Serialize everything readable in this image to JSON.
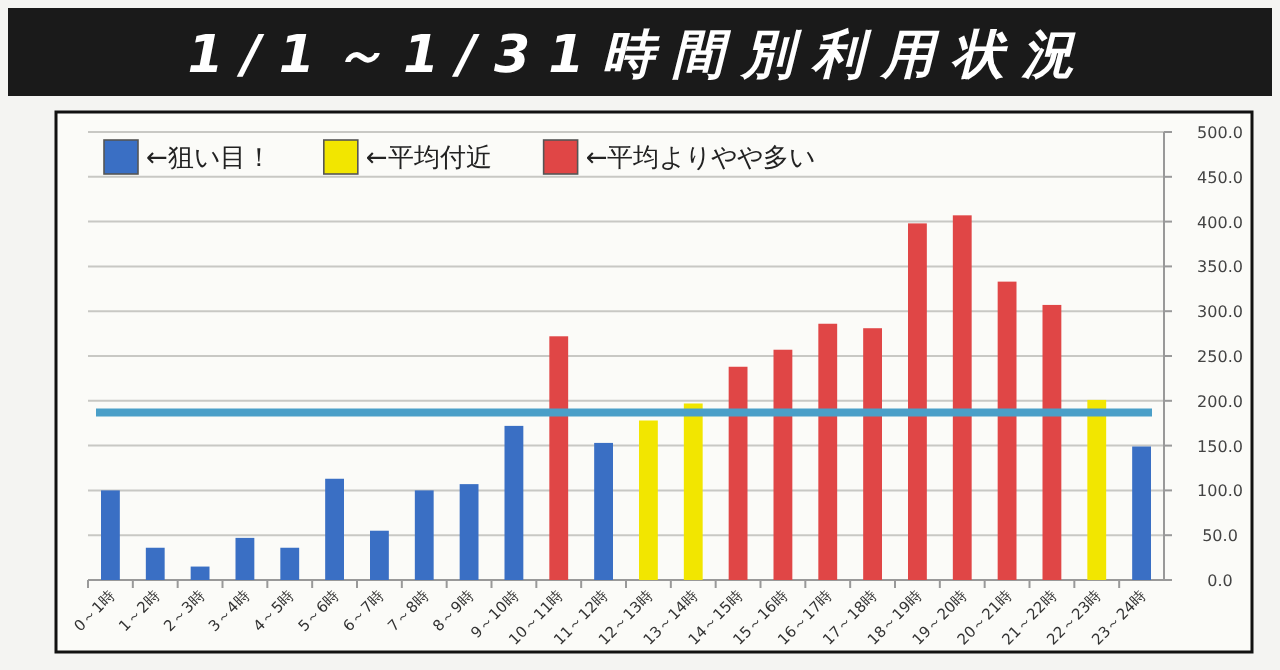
{
  "chart_data": {
    "type": "bar",
    "title": "1/1～1/31時間別利用状況",
    "categories": [
      "0～1時",
      "1～2時",
      "2～3時",
      "3～4時",
      "4～5時",
      "5～6時",
      "6～7時",
      "7～8時",
      "8～9時",
      "9～10時",
      "10～11時",
      "11～12時",
      "12～13時",
      "13～14時",
      "14～15時",
      "15～16時",
      "16～17時",
      "17～18時",
      "18～19時",
      "19～20時",
      "20～21時",
      "21～22時",
      "22～23時",
      "23～24時"
    ],
    "series": [
      {
        "name": "←狙い目！",
        "color": "#3a6fc4",
        "values": [
          100,
          36,
          15,
          47,
          36,
          113,
          55,
          100,
          107,
          172,
          null,
          153,
          null,
          null,
          null,
          null,
          null,
          null,
          null,
          null,
          null,
          null,
          null,
          149
        ]
      },
      {
        "name": "←平均付近",
        "color": "#f2e600",
        "values": [
          null,
          null,
          null,
          null,
          null,
          null,
          null,
          null,
          null,
          null,
          null,
          null,
          178,
          197,
          null,
          null,
          null,
          null,
          null,
          null,
          null,
          null,
          201,
          null
        ]
      },
      {
        "name": "←平均よりやや多い",
        "color": "#e04646",
        "values": [
          null,
          null,
          null,
          null,
          null,
          null,
          null,
          null,
          null,
          null,
          272,
          null,
          null,
          null,
          238,
          257,
          286,
          281,
          398,
          407,
          333,
          307,
          null,
          null
        ]
      }
    ],
    "ylim": [
      0,
      500
    ],
    "yticks": [
      {
        "value": 0,
        "label": "0.0"
      },
      {
        "value": 50,
        "label": "50.0"
      },
      {
        "value": 100,
        "label": "100.0"
      },
      {
        "value": 150,
        "label": "150.0"
      },
      {
        "value": 200,
        "label": "200.0"
      },
      {
        "value": 250,
        "label": "250.0"
      },
      {
        "value": 300,
        "label": "300.0"
      },
      {
        "value": 350,
        "label": "350.0"
      },
      {
        "value": 400,
        "label": "400.0"
      },
      {
        "value": 450,
        "label": "450.0"
      },
      {
        "value": 500,
        "label": "500.0"
      }
    ],
    "grid": true,
    "legend": "top left",
    "ref_lines": [
      {
        "axis": "y",
        "value": 187,
        "color": "#4a9fc8"
      }
    ]
  }
}
